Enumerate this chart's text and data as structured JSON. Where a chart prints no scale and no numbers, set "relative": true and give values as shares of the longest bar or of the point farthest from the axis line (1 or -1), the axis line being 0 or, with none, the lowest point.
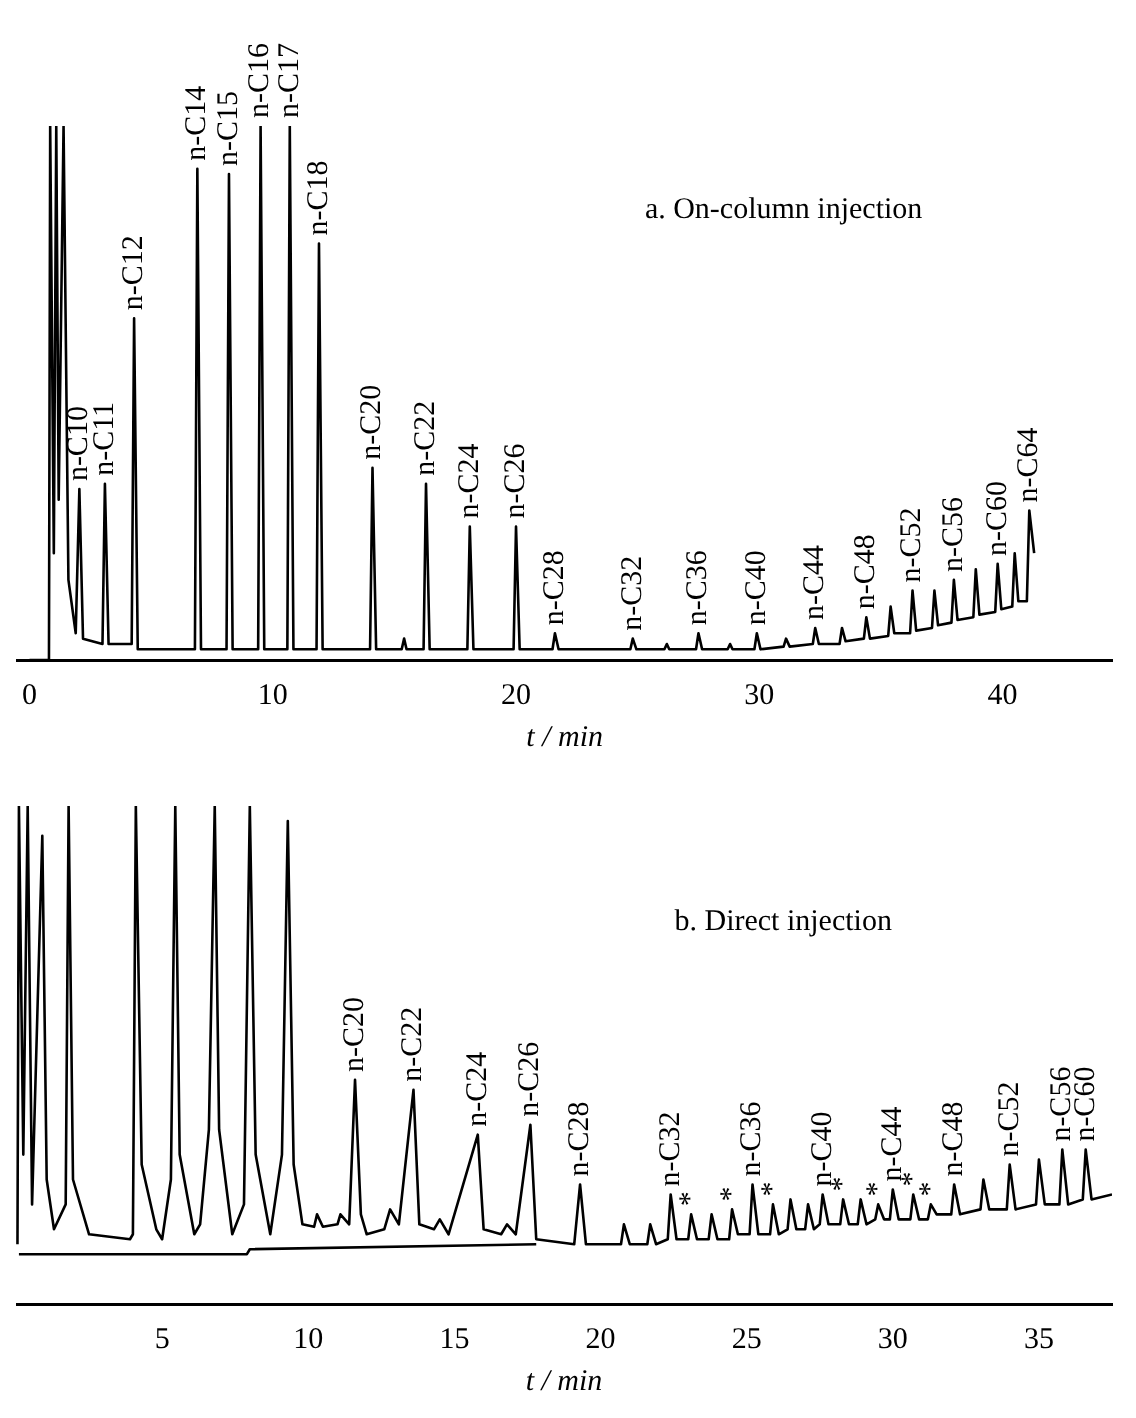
{
  "chart_data": [
    {
      "type": "line",
      "title": "a. On-column injection",
      "xlabel": "t / min",
      "relative": true,
      "xlim": [
        -0.5,
        44.5
      ],
      "xticks": [
        0,
        10,
        20,
        30,
        40
      ],
      "tick_labels": "x",
      "grid": false,
      "legend": false,
      "marker": "none",
      "line_style": "solid",
      "series": [
        {
          "color": "#000000",
          "x": [
            0,
            0.8,
            0.85,
            1.0,
            1.1,
            1.2,
            1.4,
            1.6,
            1.9,
            2.05,
            2.2,
            3.0,
            3.1,
            3.25,
            4.2,
            4.3,
            4.45,
            6.8,
            6.9,
            7.05,
            8.1,
            8.2,
            8.35,
            9.4,
            9.5,
            9.65,
            10.6,
            10.7,
            10.85,
            11.8,
            11.9,
            12.05,
            14.0,
            14.1,
            14.25,
            15.3,
            15.4,
            15.5,
            16.2,
            16.3,
            16.45,
            18.0,
            18.1,
            18.25,
            19.9,
            20.0,
            20.15,
            21.5,
            21.6,
            21.75,
            24.7,
            24.8,
            24.95,
            26.1,
            26.2,
            26.3,
            27.4,
            27.5,
            27.65,
            28.7,
            28.8,
            28.9,
            29.8,
            29.9,
            30.05,
            31.0,
            31.1,
            31.25,
            32.2,
            32.3,
            32.45,
            33.3,
            33.4,
            33.55,
            34.3,
            34.4,
            34.55,
            35.3,
            35.4,
            35.55,
            36.2,
            36.3,
            36.45,
            37.1,
            37.2,
            37.35,
            37.9,
            38.0,
            38.15,
            38.8,
            38.9,
            39.05,
            39.7,
            39.8,
            39.95,
            40.4,
            40.5,
            40.65,
            41.0,
            41.1,
            41.3
          ],
          "values": [
            0,
            0,
            1.0,
            0.2,
            1.0,
            0.3,
            1.0,
            0.15,
            0.05,
            0.32,
            0.04,
            0.03,
            0.33,
            0.03,
            0.03,
            0.64,
            0.02,
            0.02,
            0.92,
            0.02,
            0.02,
            0.91,
            0.02,
            0.02,
            1.0,
            0.02,
            0.02,
            1.0,
            0.02,
            0.02,
            0.78,
            0.02,
            0.02,
            0.36,
            0.02,
            0.02,
            0.04,
            0.02,
            0.02,
            0.33,
            0.02,
            0.02,
            0.25,
            0.02,
            0.02,
            0.25,
            0.02,
            0.02,
            0.05,
            0.02,
            0.02,
            0.04,
            0.02,
            0.02,
            0.03,
            0.02,
            0.02,
            0.05,
            0.02,
            0.02,
            0.03,
            0.02,
            0.02,
            0.05,
            0.02,
            0.025,
            0.04,
            0.025,
            0.03,
            0.06,
            0.03,
            0.03,
            0.06,
            0.035,
            0.04,
            0.08,
            0.04,
            0.045,
            0.1,
            0.05,
            0.05,
            0.13,
            0.055,
            0.06,
            0.13,
            0.065,
            0.07,
            0.15,
            0.075,
            0.08,
            0.17,
            0.085,
            0.09,
            0.18,
            0.095,
            0.1,
            0.2,
            0.11,
            0.11,
            0.28,
            0.2
          ]
        }
      ],
      "annotations": [
        {
          "text": "n-C10",
          "x": 2.05,
          "y": 0.32
        },
        {
          "text": "n-C11",
          "x": 3.1,
          "y": 0.33
        },
        {
          "text": "n-C12",
          "x": 4.3,
          "y": 0.64
        },
        {
          "text": "n-C14",
          "x": 6.9,
          "y": 0.92
        },
        {
          "text": "n-C15",
          "x": 8.2,
          "y": 0.91
        },
        {
          "text": "n-C16",
          "x": 9.5,
          "y": 1.0
        },
        {
          "text": "n-C17",
          "x": 10.7,
          "y": 1.0
        },
        {
          "text": "n-C18",
          "x": 11.9,
          "y": 0.78
        },
        {
          "text": "n-C20",
          "x": 14.1,
          "y": 0.36
        },
        {
          "text": "n-C22",
          "x": 16.3,
          "y": 0.33
        },
        {
          "text": "n-C24",
          "x": 18.1,
          "y": 0.25
        },
        {
          "text": "n-C26",
          "x": 20.0,
          "y": 0.25
        },
        {
          "text": "n-C28",
          "x": 21.6,
          "y": 0.05
        },
        {
          "text": "n-C32",
          "x": 24.8,
          "y": 0.04
        },
        {
          "text": "n-C36",
          "x": 27.5,
          "y": 0.05
        },
        {
          "text": "n-C40",
          "x": 29.9,
          "y": 0.05
        },
        {
          "text": "n-C44",
          "x": 32.3,
          "y": 0.06
        },
        {
          "text": "n-C48",
          "x": 34.4,
          "y": 0.08
        },
        {
          "text": "n-C52",
          "x": 36.3,
          "y": 0.13
        },
        {
          "text": "n-C56",
          "x": 38.0,
          "y": 0.15
        },
        {
          "text": "n-C60",
          "x": 39.8,
          "y": 0.18
        },
        {
          "text": "n-C64",
          "x": 41.1,
          "y": 0.28
        }
      ]
    },
    {
      "type": "line",
      "title": "b. Direct injection",
      "xlabel": "t / min",
      "relative": true,
      "xlim": [
        0,
        37.5
      ],
      "xticks": [
        5,
        10,
        15,
        20,
        25,
        30,
        35
      ],
      "tick_labels": "x",
      "grid": false,
      "legend": false,
      "marker": "none",
      "line_style": "solid",
      "series": [
        {
          "color": "#000000",
          "x": [
            0.05,
            0.1,
            0.25,
            0.4,
            0.55,
            0.9,
            1.05,
            1.3,
            1.7,
            1.8,
            1.95,
            2.5,
            3.9,
            4.0,
            4.1,
            4.3,
            4.8,
            5.0,
            5.3,
            5.45,
            5.6,
            6.1,
            6.3,
            6.6,
            6.8,
            6.95,
            7.4,
            7.8,
            8.0,
            8.2,
            8.7,
            9.1,
            9.3,
            9.5,
            9.8,
            10.2,
            10.3,
            10.5,
            11.0,
            11.1,
            11.4,
            11.6,
            11.8,
            12.0,
            12.6,
            12.8,
            13.1,
            13.6,
            13.8,
            14.3,
            14.5,
            14.8,
            15.8,
            16.0,
            16.6,
            16.8,
            17.1,
            17.6,
            17.8,
            19.1,
            19.3,
            19.5,
            20.7,
            20.8,
            21.0,
            21.6,
            21.7,
            21.9,
            22.3,
            22.4,
            22.6,
            23.0,
            23.1,
            23.3,
            23.7,
            23.8,
            24.0,
            24.4,
            24.5,
            24.7,
            25.1,
            25.2,
            25.4,
            25.8,
            25.9,
            26.1,
            26.4,
            26.5,
            26.7,
            27.0,
            27.1,
            27.3,
            27.5,
            27.6,
            27.8,
            28.2,
            28.3,
            28.5,
            28.8,
            28.9,
            29.1,
            29.4,
            29.5,
            29.7,
            29.9,
            30.0,
            30.2,
            30.6,
            30.7,
            30.9,
            31.2,
            31.3,
            31.5,
            32.0,
            32.1,
            32.3,
            33.0,
            33.1,
            33.3,
            33.9,
            34.0,
            34.2,
            34.9,
            35.0,
            35.2,
            35.7,
            35.8,
            36.0,
            36.5,
            36.6,
            36.8,
            37.5
          ],
          "values": [
            0.12,
            1.0,
            0.3,
            1.0,
            0.2,
            0.94,
            0.25,
            0.15,
            0.2,
            1.0,
            0.25,
            0.14,
            0.13,
            0.14,
            1.0,
            0.28,
            0.15,
            0.13,
            0.25,
            1.0,
            0.3,
            0.14,
            0.16,
            0.35,
            1.0,
            0.35,
            0.14,
            0.2,
            1.0,
            0.3,
            0.14,
            0.3,
            0.97,
            0.28,
            0.16,
            0.155,
            0.18,
            0.155,
            0.16,
            0.18,
            0.16,
            0.45,
            0.18,
            0.14,
            0.15,
            0.19,
            0.16,
            0.43,
            0.16,
            0.15,
            0.17,
            0.14,
            0.34,
            0.15,
            0.14,
            0.16,
            0.14,
            0.36,
            0.13,
            0.12,
            0.24,
            0.12,
            0.12,
            0.16,
            0.12,
            0.12,
            0.16,
            0.12,
            0.13,
            0.22,
            0.13,
            0.13,
            0.18,
            0.13,
            0.13,
            0.18,
            0.13,
            0.13,
            0.19,
            0.14,
            0.14,
            0.24,
            0.14,
            0.14,
            0.2,
            0.14,
            0.15,
            0.21,
            0.15,
            0.15,
            0.2,
            0.15,
            0.16,
            0.22,
            0.16,
            0.16,
            0.21,
            0.16,
            0.16,
            0.21,
            0.16,
            0.17,
            0.2,
            0.17,
            0.17,
            0.23,
            0.17,
            0.17,
            0.22,
            0.17,
            0.17,
            0.2,
            0.18,
            0.18,
            0.24,
            0.18,
            0.19,
            0.25,
            0.19,
            0.19,
            0.28,
            0.19,
            0.2,
            0.29,
            0.2,
            0.2,
            0.31,
            0.2,
            0.21,
            0.31,
            0.21,
            0.22
          ]
        },
        {
          "color": "#000000",
          "x": [
            0.1,
            7.9,
            8.0,
            17.8
          ],
          "values": [
            0.1,
            0.1,
            0.11,
            0.12
          ]
        }
      ],
      "annotations": [
        {
          "text": "n-C20",
          "x": 11.6,
          "y": 0.45
        },
        {
          "text": "n-C22",
          "x": 13.6,
          "y": 0.43
        },
        {
          "text": "n-C24",
          "x": 15.8,
          "y": 0.34
        },
        {
          "text": "n-C26",
          "x": 17.6,
          "y": 0.36
        },
        {
          "text": "n-C28",
          "x": 19.3,
          "y": 0.24
        },
        {
          "text": "n-C32",
          "x": 22.4,
          "y": 0.22
        },
        {
          "text": "*",
          "x": 23.1,
          "y": 0.18
        },
        {
          "text": "*",
          "x": 24.5,
          "y": 0.19
        },
        {
          "text": "n-C36",
          "x": 25.2,
          "y": 0.24
        },
        {
          "text": "*",
          "x": 25.9,
          "y": 0.2
        },
        {
          "text": "n-C40",
          "x": 27.6,
          "y": 0.22
        },
        {
          "text": "*",
          "x": 28.3,
          "y": 0.21
        },
        {
          "text": "*",
          "x": 29.5,
          "y": 0.2
        },
        {
          "text": "n-C44",
          "x": 30.0,
          "y": 0.23
        },
        {
          "text": "*",
          "x": 30.7,
          "y": 0.22
        },
        {
          "text": "*",
          "x": 31.3,
          "y": 0.2
        },
        {
          "text": "n-C48",
          "x": 32.1,
          "y": 0.24
        },
        {
          "text": "n-C52",
          "x": 34.0,
          "y": 0.28
        },
        {
          "text": "n-C56",
          "x": 35.8,
          "y": 0.31
        },
        {
          "text": "n-C60",
          "x": 36.6,
          "y": 0.31
        }
      ]
    }
  ]
}
